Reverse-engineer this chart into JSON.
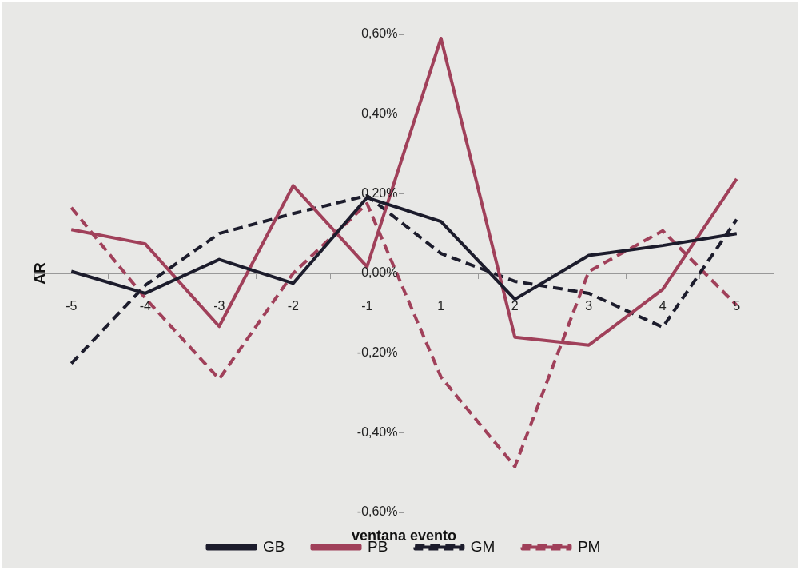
{
  "chart_data": {
    "type": "line",
    "xlabel": "ventana evento",
    "ylabel": "AR",
    "categories": [
      "-5",
      "-4",
      "-3",
      "-2",
      "-1",
      "1",
      "2",
      "3",
      "4",
      "5"
    ],
    "series": [
      {
        "name": "GB",
        "color": "#1c1c2c",
        "line_style": "solid",
        "values": [
          0.005,
          -0.05,
          0.035,
          -0.025,
          0.19,
          0.13,
          -0.065,
          0.045,
          0.07,
          0.1
        ]
      },
      {
        "name": "PB",
        "color": "#a0405a",
        "line_style": "solid",
        "values": [
          0.11,
          0.074,
          -0.133,
          0.22,
          0.017,
          0.59,
          -0.16,
          -0.18,
          -0.04,
          0.237
        ]
      },
      {
        "name": "GM",
        "color": "#1c1c2c",
        "line_style": "dashed",
        "values": [
          -0.226,
          -0.03,
          0.1,
          0.15,
          0.195,
          0.05,
          -0.02,
          -0.05,
          -0.135,
          0.135
        ]
      },
      {
        "name": "PM",
        "color": "#a0405a",
        "line_style": "dashed",
        "values": [
          0.165,
          -0.062,
          -0.265,
          0,
          0.175,
          -0.26,
          -0.485,
          0.005,
          0.107,
          -0.08
        ]
      }
    ],
    "ylim": [
      -0.6,
      0.6
    ],
    "yticks": [
      {
        "value": -0.6,
        "label": "-0,60%"
      },
      {
        "value": -0.4,
        "label": "-0,40%"
      },
      {
        "value": -0.2,
        "label": "-0,20%"
      },
      {
        "value": 0,
        "label": "0,00%"
      },
      {
        "value": 0.2,
        "label": "0,20%"
      },
      {
        "value": 0.4,
        "label": "0,40%"
      },
      {
        "value": 0.6,
        "label": "0,60%"
      }
    ],
    "grid": false,
    "legend": "bottom",
    "marker": "none"
  }
}
